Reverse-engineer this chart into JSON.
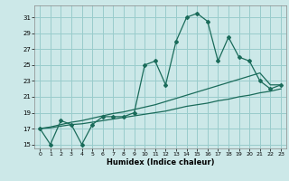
{
  "xlabel": "Humidex (Indice chaleur)",
  "bg_color": "#cce8e8",
  "grid_color": "#99cccc",
  "line_color": "#1a6b5a",
  "line1_x": [
    0,
    1,
    2,
    3,
    4,
    5,
    6,
    7,
    8,
    9,
    10,
    11,
    12,
    13,
    14,
    15,
    16,
    17,
    18,
    19,
    20,
    21,
    22,
    23
  ],
  "line1_y": [
    17,
    15,
    18,
    17.5,
    15,
    17.5,
    18.5,
    18.5,
    18.5,
    19,
    25,
    25.5,
    22.5,
    28,
    31,
    31.5,
    30.5,
    25.5,
    28.5,
    26,
    25.5,
    23,
    22,
    22.5
  ],
  "line2_x": [
    0,
    1,
    2,
    3,
    4,
    5,
    6,
    7,
    8,
    9,
    10,
    11,
    12,
    13,
    14,
    15,
    16,
    17,
    18,
    19,
    20,
    21,
    22,
    23
  ],
  "line2_y": [
    17,
    17.2,
    17.5,
    17.8,
    18.0,
    18.3,
    18.6,
    18.9,
    19.1,
    19.4,
    19.7,
    20.0,
    20.4,
    20.8,
    21.2,
    21.6,
    22.0,
    22.4,
    22.8,
    23.2,
    23.6,
    24.0,
    22.5,
    22.5
  ],
  "line3_x": [
    0,
    1,
    2,
    3,
    4,
    5,
    6,
    7,
    8,
    9,
    10,
    11,
    12,
    13,
    14,
    15,
    16,
    17,
    18,
    19,
    20,
    21,
    22,
    23
  ],
  "line3_y": [
    17,
    17.1,
    17.3,
    17.5,
    17.6,
    17.8,
    18.0,
    18.2,
    18.4,
    18.6,
    18.8,
    19.0,
    19.2,
    19.5,
    19.8,
    20.0,
    20.2,
    20.5,
    20.7,
    21.0,
    21.2,
    21.5,
    21.7,
    22.0
  ],
  "ylim": [
    14.5,
    32.5
  ],
  "xlim": [
    -0.5,
    23.5
  ],
  "yticks": [
    15,
    17,
    19,
    21,
    23,
    25,
    27,
    29,
    31
  ],
  "xticks": [
    0,
    1,
    2,
    3,
    4,
    5,
    6,
    7,
    8,
    9,
    10,
    11,
    12,
    13,
    14,
    15,
    16,
    17,
    18,
    19,
    20,
    21,
    22,
    23
  ]
}
